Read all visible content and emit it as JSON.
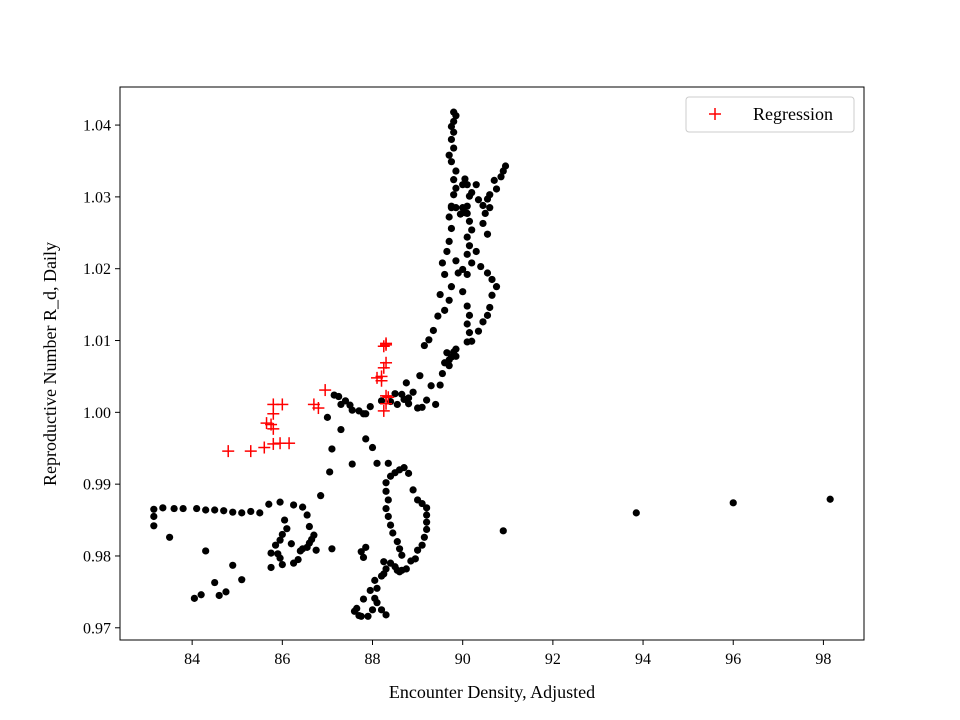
{
  "chart_data": {
    "type": "scatter",
    "xlabel": "Encounter Density, Adjusted",
    "ylabel": "Reproductive Number R_d, Daily",
    "xlim": [
      82.4,
      98.9
    ],
    "ylim": [
      0.9683,
      1.0453
    ],
    "xticks": [
      84,
      86,
      88,
      90,
      92,
      94,
      96,
      98
    ],
    "yticks": [
      0.97,
      0.98,
      0.99,
      1.0,
      1.01,
      1.02,
      1.03,
      1.04
    ],
    "ytick_labels": [
      "0.97",
      "0.98",
      "0.99",
      "1.00",
      "1.01",
      "1.02",
      "1.03",
      "1.04"
    ],
    "grid": false,
    "legend": {
      "position": "top-right",
      "entries": [
        "Regression"
      ]
    },
    "colors": {
      "points": "#000000",
      "regression": "#ff0000"
    },
    "series": [
      {
        "marker": "dot",
        "color": "#000000",
        "points": [
          [
            83.15,
            0.9865
          ],
          [
            83.15,
            0.9855
          ],
          [
            83.15,
            0.9842
          ],
          [
            83.35,
            0.9867
          ],
          [
            83.6,
            0.9866
          ],
          [
            83.8,
            0.9866
          ],
          [
            84.1,
            0.9866
          ],
          [
            84.3,
            0.9864
          ],
          [
            84.5,
            0.9864
          ],
          [
            84.7,
            0.9863
          ],
          [
            84.9,
            0.9861
          ],
          [
            85.1,
            0.986
          ],
          [
            85.3,
            0.9862
          ],
          [
            85.5,
            0.986
          ],
          [
            85.7,
            0.9872
          ],
          [
            85.95,
            0.9875
          ],
          [
            86.25,
            0.9871
          ],
          [
            86.45,
            0.9868
          ],
          [
            86.55,
            0.9857
          ],
          [
            83.5,
            0.9826
          ],
          [
            84.05,
            0.9741
          ],
          [
            84.2,
            0.9746
          ],
          [
            84.3,
            0.9807
          ],
          [
            84.5,
            0.9763
          ],
          [
            84.6,
            0.9745
          ],
          [
            84.75,
            0.975
          ],
          [
            84.9,
            0.9787
          ],
          [
            85.1,
            0.9767
          ],
          [
            85.75,
            0.9784
          ],
          [
            85.75,
            0.9804
          ],
          [
            85.85,
            0.9815
          ],
          [
            85.9,
            0.9803
          ],
          [
            85.95,
            0.9797
          ],
          [
            86.0,
            0.9788
          ],
          [
            85.95,
            0.9822
          ],
          [
            86.0,
            0.983
          ],
          [
            86.05,
            0.985
          ],
          [
            86.1,
            0.9838
          ],
          [
            86.2,
            0.9817
          ],
          [
            86.25,
            0.979
          ],
          [
            86.35,
            0.9795
          ],
          [
            86.4,
            0.9807
          ],
          [
            86.45,
            0.981
          ],
          [
            86.55,
            0.9812
          ],
          [
            86.6,
            0.9818
          ],
          [
            86.65,
            0.9823
          ],
          [
            86.6,
            0.9841
          ],
          [
            86.7,
            0.9829
          ],
          [
            86.75,
            0.9808
          ],
          [
            86.85,
            0.9884
          ],
          [
            87.05,
            0.9917
          ],
          [
            87.1,
            0.9949
          ],
          [
            87.3,
            0.9976
          ],
          [
            87.0,
            0.9993
          ],
          [
            87.1,
            0.981
          ],
          [
            87.55,
            0.9928
          ],
          [
            87.75,
            0.9806
          ],
          [
            87.8,
            0.9798
          ],
          [
            87.85,
            0.9812
          ],
          [
            87.85,
            0.9963
          ],
          [
            88.0,
            0.9951
          ],
          [
            88.1,
            0.9929
          ],
          [
            88.35,
            0.9929
          ],
          [
            87.15,
            1.0024
          ],
          [
            87.25,
            1.0022
          ],
          [
            87.3,
            1.0011
          ],
          [
            87.4,
            1.0016
          ],
          [
            87.5,
            1.001
          ],
          [
            87.55,
            1.0003
          ],
          [
            87.7,
            1.0002
          ],
          [
            87.8,
            0.9998
          ],
          [
            87.85,
            0.9998
          ],
          [
            87.95,
            1.0008
          ],
          [
            88.2,
            1.0016
          ],
          [
            88.4,
            1.0015
          ],
          [
            88.5,
            1.0026
          ],
          [
            88.55,
            1.0011
          ],
          [
            88.65,
            1.0025
          ],
          [
            88.7,
            1.0018
          ],
          [
            88.8,
            1.002
          ],
          [
            88.75,
            1.0041
          ],
          [
            88.8,
            1.0012
          ],
          [
            88.9,
            1.0028
          ],
          [
            89.05,
            1.0051
          ],
          [
            89.1,
            1.0007
          ],
          [
            89.2,
            1.0017
          ],
          [
            89.3,
            1.0037
          ],
          [
            89.4,
            1.0011
          ],
          [
            89.5,
            1.0038
          ],
          [
            89.55,
            1.0054
          ],
          [
            89.6,
            1.0069
          ],
          [
            89.7,
            1.0073
          ],
          [
            89.75,
            1.0077
          ],
          [
            89.8,
            1.0084
          ],
          [
            89.85,
            1.0078
          ],
          [
            89.85,
            1.0088
          ],
          [
            89.7,
            1.0065
          ],
          [
            89.65,
            1.0083
          ],
          [
            89.0,
            1.0006
          ],
          [
            89.15,
            1.0093
          ],
          [
            89.25,
            1.0101
          ],
          [
            89.35,
            1.0114
          ],
          [
            89.45,
            1.0134
          ],
          [
            89.5,
            1.0164
          ],
          [
            89.6,
            1.0142
          ],
          [
            89.7,
            1.0156
          ],
          [
            89.75,
            1.0175
          ],
          [
            89.9,
            1.0194
          ],
          [
            90.0,
            1.0199
          ],
          [
            90.1,
            1.0192
          ],
          [
            89.85,
            1.0211
          ],
          [
            89.6,
            1.0192
          ],
          [
            89.55,
            1.0208
          ],
          [
            89.65,
            1.0224
          ],
          [
            89.7,
            1.0238
          ],
          [
            89.75,
            1.0256
          ],
          [
            89.7,
            1.0272
          ],
          [
            89.75,
            1.0285
          ],
          [
            89.8,
            1.0303
          ],
          [
            89.85,
            1.0312
          ],
          [
            89.8,
            1.0324
          ],
          [
            89.85,
            1.0336
          ],
          [
            89.75,
            1.0349
          ],
          [
            89.7,
            1.0358
          ],
          [
            89.8,
            1.0368
          ],
          [
            89.75,
            1.038
          ],
          [
            89.8,
            1.039
          ],
          [
            89.75,
            1.0398
          ],
          [
            89.8,
            1.0405
          ],
          [
            89.85,
            1.0413
          ],
          [
            89.8,
            1.0418
          ],
          [
            89.75,
            1.0287
          ],
          [
            89.85,
            1.0285
          ],
          [
            89.95,
            1.0276
          ],
          [
            90.0,
            1.0285
          ],
          [
            90.05,
            1.0278
          ],
          [
            90.1,
            1.0287
          ],
          [
            90.15,
            1.0301
          ],
          [
            90.2,
            1.0306
          ],
          [
            90.3,
            1.0317
          ],
          [
            90.35,
            1.0296
          ],
          [
            90.45,
            1.0288
          ],
          [
            90.55,
            1.0297
          ],
          [
            90.6,
            1.0303
          ],
          [
            90.7,
            1.0323
          ],
          [
            90.75,
            1.0311
          ],
          [
            90.85,
            1.0328
          ],
          [
            90.95,
            1.0343
          ],
          [
            90.9,
            1.0336
          ],
          [
            90.6,
            1.0285
          ],
          [
            90.5,
            1.0277
          ],
          [
            90.1,
            1.0317
          ],
          [
            90.05,
            1.0325
          ],
          [
            90.0,
            1.0317
          ],
          [
            90.1,
            1.0277
          ],
          [
            90.15,
            1.0266
          ],
          [
            90.2,
            1.0254
          ],
          [
            90.1,
            1.0244
          ],
          [
            90.15,
            1.0232
          ],
          [
            90.1,
            1.022
          ],
          [
            90.2,
            1.0208
          ],
          [
            90.3,
            1.0224
          ],
          [
            90.45,
            1.0263
          ],
          [
            90.55,
            1.0248
          ],
          [
            90.0,
            1.0168
          ],
          [
            90.1,
            1.0148
          ],
          [
            90.15,
            1.0135
          ],
          [
            90.1,
            1.0123
          ],
          [
            90.15,
            1.0111
          ],
          [
            90.1,
            1.0098
          ],
          [
            90.2,
            1.0099
          ],
          [
            90.35,
            1.0113
          ],
          [
            90.45,
            1.0126
          ],
          [
            90.55,
            1.0135
          ],
          [
            90.6,
            1.0146
          ],
          [
            90.65,
            1.0163
          ],
          [
            90.75,
            1.0175
          ],
          [
            90.65,
            1.0185
          ],
          [
            90.55,
            1.0194
          ],
          [
            90.4,
            1.0203
          ],
          [
            88.2,
            0.9725
          ],
          [
            88.3,
            0.9718
          ],
          [
            88.1,
            0.9735
          ],
          [
            88.0,
            0.9725
          ],
          [
            87.9,
            0.9716
          ],
          [
            88.05,
            0.9741
          ],
          [
            87.8,
            0.974
          ],
          [
            87.65,
            0.9727
          ],
          [
            87.6,
            0.9723
          ],
          [
            87.7,
            0.9717
          ],
          [
            87.75,
            0.9716
          ],
          [
            87.95,
            0.9752
          ],
          [
            88.05,
            0.9766
          ],
          [
            88.1,
            0.9755
          ],
          [
            88.2,
            0.9772
          ],
          [
            88.25,
            0.9775
          ],
          [
            88.25,
            0.9792
          ],
          [
            88.3,
            0.9782
          ],
          [
            88.4,
            0.979
          ],
          [
            88.5,
            0.9785
          ],
          [
            88.55,
            0.978
          ],
          [
            88.6,
            0.9778
          ],
          [
            88.65,
            0.978
          ],
          [
            88.75,
            0.9782
          ],
          [
            88.85,
            0.9793
          ],
          [
            88.3,
            0.9902
          ],
          [
            88.3,
            0.989
          ],
          [
            88.35,
            0.9878
          ],
          [
            88.3,
            0.9866
          ],
          [
            88.35,
            0.9855
          ],
          [
            88.4,
            0.9843
          ],
          [
            88.45,
            0.9832
          ],
          [
            88.55,
            0.982
          ],
          [
            88.6,
            0.981
          ],
          [
            88.65,
            0.9801
          ],
          [
            88.4,
            0.9911
          ],
          [
            88.5,
            0.9916
          ],
          [
            88.6,
            0.992
          ],
          [
            88.7,
            0.9923
          ],
          [
            88.8,
            0.9915
          ],
          [
            88.9,
            0.9892
          ],
          [
            89.0,
            0.9878
          ],
          [
            89.1,
            0.9873
          ],
          [
            89.2,
            0.9867
          ],
          [
            89.2,
            0.9857
          ],
          [
            89.2,
            0.9847
          ],
          [
            89.2,
            0.9837
          ],
          [
            89.15,
            0.9826
          ],
          [
            89.1,
            0.9815
          ],
          [
            89.0,
            0.9808
          ],
          [
            88.95,
            0.9796
          ],
          [
            90.9,
            0.9835
          ],
          [
            93.85,
            0.986
          ],
          [
            96.0,
            0.9874
          ],
          [
            98.15,
            0.9879
          ]
        ]
      },
      {
        "name": "Regression",
        "marker": "plus",
        "color": "#ff0000",
        "points": [
          [
            84.8,
            0.9946
          ],
          [
            85.3,
            0.9946
          ],
          [
            85.6,
            0.9951
          ],
          [
            85.8,
            0.9956
          ],
          [
            85.95,
            0.9957
          ],
          [
            86.15,
            0.9957
          ],
          [
            85.65,
            0.9985
          ],
          [
            85.75,
            0.9983
          ],
          [
            85.8,
            0.9977
          ],
          [
            85.8,
            0.9998
          ],
          [
            85.8,
            1.0011
          ],
          [
            86.0,
            1.0011
          ],
          [
            86.7,
            1.0011
          ],
          [
            86.8,
            1.0006
          ],
          [
            86.95,
            1.0031
          ],
          [
            88.1,
            1.0048
          ],
          [
            88.2,
            1.0044
          ],
          [
            88.2,
            1.005
          ],
          [
            88.25,
            1.0062
          ],
          [
            88.3,
            1.0069
          ],
          [
            88.25,
            1.0092
          ],
          [
            88.3,
            1.0094
          ],
          [
            88.3,
            1.0096
          ],
          [
            88.25,
            1.0002
          ],
          [
            88.3,
            1.0012
          ],
          [
            88.3,
            1.0023
          ],
          [
            88.35,
            1.0021
          ]
        ]
      }
    ]
  }
}
